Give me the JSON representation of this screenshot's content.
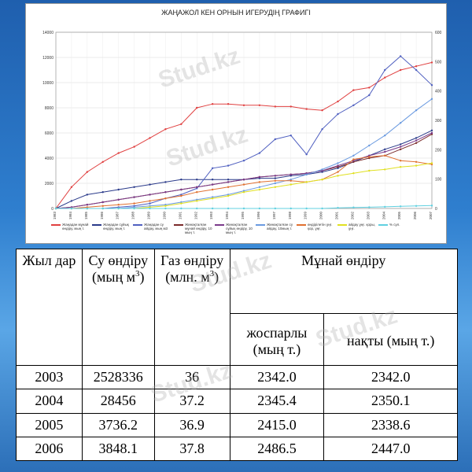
{
  "chart_data": {
    "type": "line",
    "title": "ЖАҢАЖОЛ КЕН ОРНЫН ИГЕРУДІҢ ГРАФИГІ",
    "x": [
      "1983",
      "1984",
      "1985",
      "1986",
      "1987",
      "1988",
      "1989",
      "1990",
      "1991",
      "1992",
      "1993",
      "1994",
      "1995",
      "1996",
      "1997",
      "1998",
      "1999",
      "2000",
      "2001",
      "2002",
      "2003",
      "2004",
      "2005",
      "2006",
      "2007"
    ],
    "ylim_left": [
      0,
      14000
    ],
    "yticks_left": [
      "0",
      "2000",
      "4000",
      "6000",
      "8000",
      "10000",
      "12000",
      "14000"
    ],
    "ylim_right": [
      0,
      600
    ],
    "yticks_right": [
      "0",
      "100",
      "200",
      "300",
      "400",
      "500",
      "600"
    ],
    "grid": true,
    "legend_position": "bottom",
    "series": [
      {
        "name": "Жаңадан мұнай өндіру, мың т.",
        "color": "#e04040",
        "values": [
          0,
          1700,
          2900,
          3700,
          4400,
          4900,
          5600,
          6300,
          6700,
          8000,
          8300,
          8300,
          8200,
          8200,
          8100,
          8100,
          7900,
          7800,
          8500,
          9400,
          9600,
          10400,
          11000,
          11300,
          11600
        ]
      },
      {
        "name": "Жаңадан сұйық өндіру, мың т.",
        "color": "#2a3a8a",
        "values": [
          0,
          600,
          1100,
          1300,
          1500,
          1700,
          1900,
          2100,
          2300,
          2300,
          2300,
          2300,
          2300,
          2400,
          2400,
          2600,
          2700,
          2900,
          3200,
          3700,
          4200,
          4700,
          5100,
          5600,
          6200
        ]
      },
      {
        "name": "Жаңадан су айдау, мың м3",
        "color": "#5060c0",
        "values": [
          0,
          0,
          0,
          0,
          100,
          200,
          400,
          800,
          1100,
          1600,
          3200,
          3400,
          3800,
          4400,
          5500,
          5800,
          4300,
          6300,
          7500,
          8200,
          9000,
          11000,
          12100,
          11000,
          9800
        ]
      },
      {
        "name": "Жинақталған мұнай өндіру, 10 мың т.",
        "color": "#7a2a2a",
        "values": [
          0,
          100,
          300,
          500,
          700,
          900,
          1100,
          1300,
          1500,
          1700,
          1900,
          2100,
          2300,
          2500,
          2600,
          2700,
          2800,
          3000,
          3300,
          3700,
          4000,
          4200,
          4700,
          5200,
          5900
        ]
      },
      {
        "name": "Жинақталған сұйық өндіру, 10 мың т.",
        "color": "#7a3a8a",
        "values": [
          0,
          100,
          300,
          500,
          700,
          900,
          1100,
          1300,
          1500,
          1700,
          1900,
          2100,
          2300,
          2500,
          2600,
          2700,
          2800,
          3000,
          3400,
          3800,
          4200,
          4500,
          4900,
          5400,
          6000
        ]
      },
      {
        "name": "Жинақталған су айдау, 10мың т.",
        "color": "#6a9ae0",
        "values": [
          0,
          0,
          0,
          0,
          0,
          100,
          200,
          300,
          500,
          700,
          900,
          1100,
          1400,
          1700,
          2000,
          2300,
          2700,
          3100,
          3600,
          4200,
          5000,
          5800,
          6800,
          7800,
          8700
        ]
      },
      {
        "name": "өндірілетін ұңғ. қор, ұңғ.",
        "color": "#e07030",
        "values": [
          0,
          0,
          100,
          200,
          300,
          400,
          600,
          800,
          1000,
          1300,
          1500,
          1700,
          1900,
          2100,
          2200,
          2200,
          2100,
          2300,
          2900,
          3900,
          4100,
          4200,
          3800,
          3700,
          3500
        ]
      },
      {
        "name": "айдау ұңғ. қоры, ұңғ.",
        "color": "#e0e020",
        "values": [
          0,
          0,
          0,
          0,
          0,
          0,
          100,
          200,
          400,
          600,
          800,
          1000,
          1300,
          1500,
          1700,
          1900,
          2100,
          2300,
          2600,
          2800,
          3000,
          3100,
          3300,
          3400,
          3600
        ]
      },
      {
        "name": "% сул.",
        "color": "#60d0e0",
        "values": [
          0,
          0,
          0,
          0,
          0,
          0,
          0,
          0,
          0,
          0,
          0,
          0,
          0,
          0,
          0,
          0,
          0,
          0,
          50,
          80,
          100,
          130,
          170,
          200,
          230
        ]
      }
    ]
  },
  "table": {
    "headers": {
      "year": "Жыл дар",
      "water": "Су өндіру (мың м",
      "water_sup": "3",
      "water_close": ")",
      "gas": "Газ өндіру (млн. м",
      "gas_sup": "3",
      "gas_close": ")",
      "oil": "Мұнай өндіру",
      "planned": "жоспарлы (мың т.)",
      "actual": "нақты (мың т.)"
    },
    "rows": [
      {
        "year": "2003",
        "water": "2528336",
        "gas": "36",
        "planned": "2342.0",
        "actual": "2342.0"
      },
      {
        "year": "2004",
        "water": "28456",
        "gas": "37.2",
        "planned": "2345.4",
        "actual": "2350.1"
      },
      {
        "year": "2005",
        "water": "3736.2",
        "gas": "36.9",
        "planned": "2415.0",
        "actual": "2338.6"
      },
      {
        "year": "2006",
        "water": "3848.1",
        "gas": "37.8",
        "planned": "2486.5",
        "actual": "2447.0"
      }
    ]
  },
  "watermark": "Stud.kz"
}
